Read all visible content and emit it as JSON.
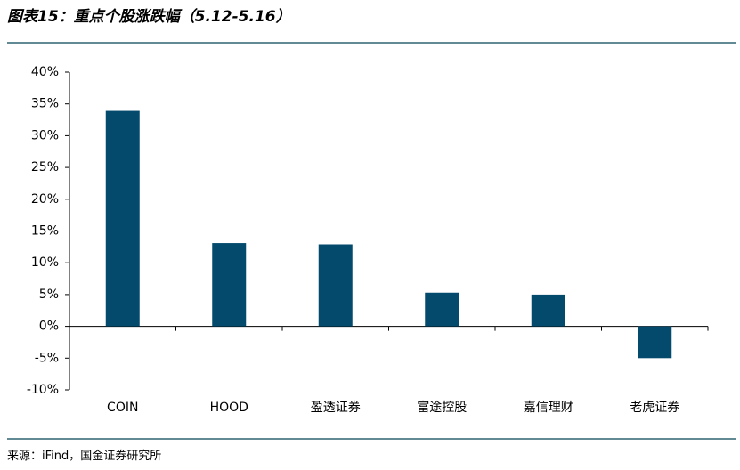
{
  "chart_data": {
    "type": "bar",
    "title": "图表15：重点个股涨跌幅（5.12-5.16）",
    "source": "来源：iFind，国金证券研究所",
    "categories": [
      "COIN",
      "HOOD",
      "盈透证券",
      "富途控股",
      "嘉信理财",
      "老虎证券"
    ],
    "values": [
      33.9,
      13.1,
      12.9,
      5.3,
      5.0,
      -5.0
    ],
    "color": "#044a6d",
    "ylim": [
      -10,
      40
    ],
    "yticks": [
      {
        "value": -10,
        "label": "-10%"
      },
      {
        "value": -5,
        "label": "-5%"
      },
      {
        "value": 0,
        "label": "0%"
      },
      {
        "value": 5,
        "label": "5%"
      },
      {
        "value": 10,
        "label": "10%"
      },
      {
        "value": 15,
        "label": "15%"
      },
      {
        "value": 20,
        "label": "20%"
      },
      {
        "value": 25,
        "label": "25%"
      },
      {
        "value": 30,
        "label": "30%"
      },
      {
        "value": 35,
        "label": "35%"
      },
      {
        "value": 40,
        "label": "40%"
      }
    ],
    "grid": false
  }
}
